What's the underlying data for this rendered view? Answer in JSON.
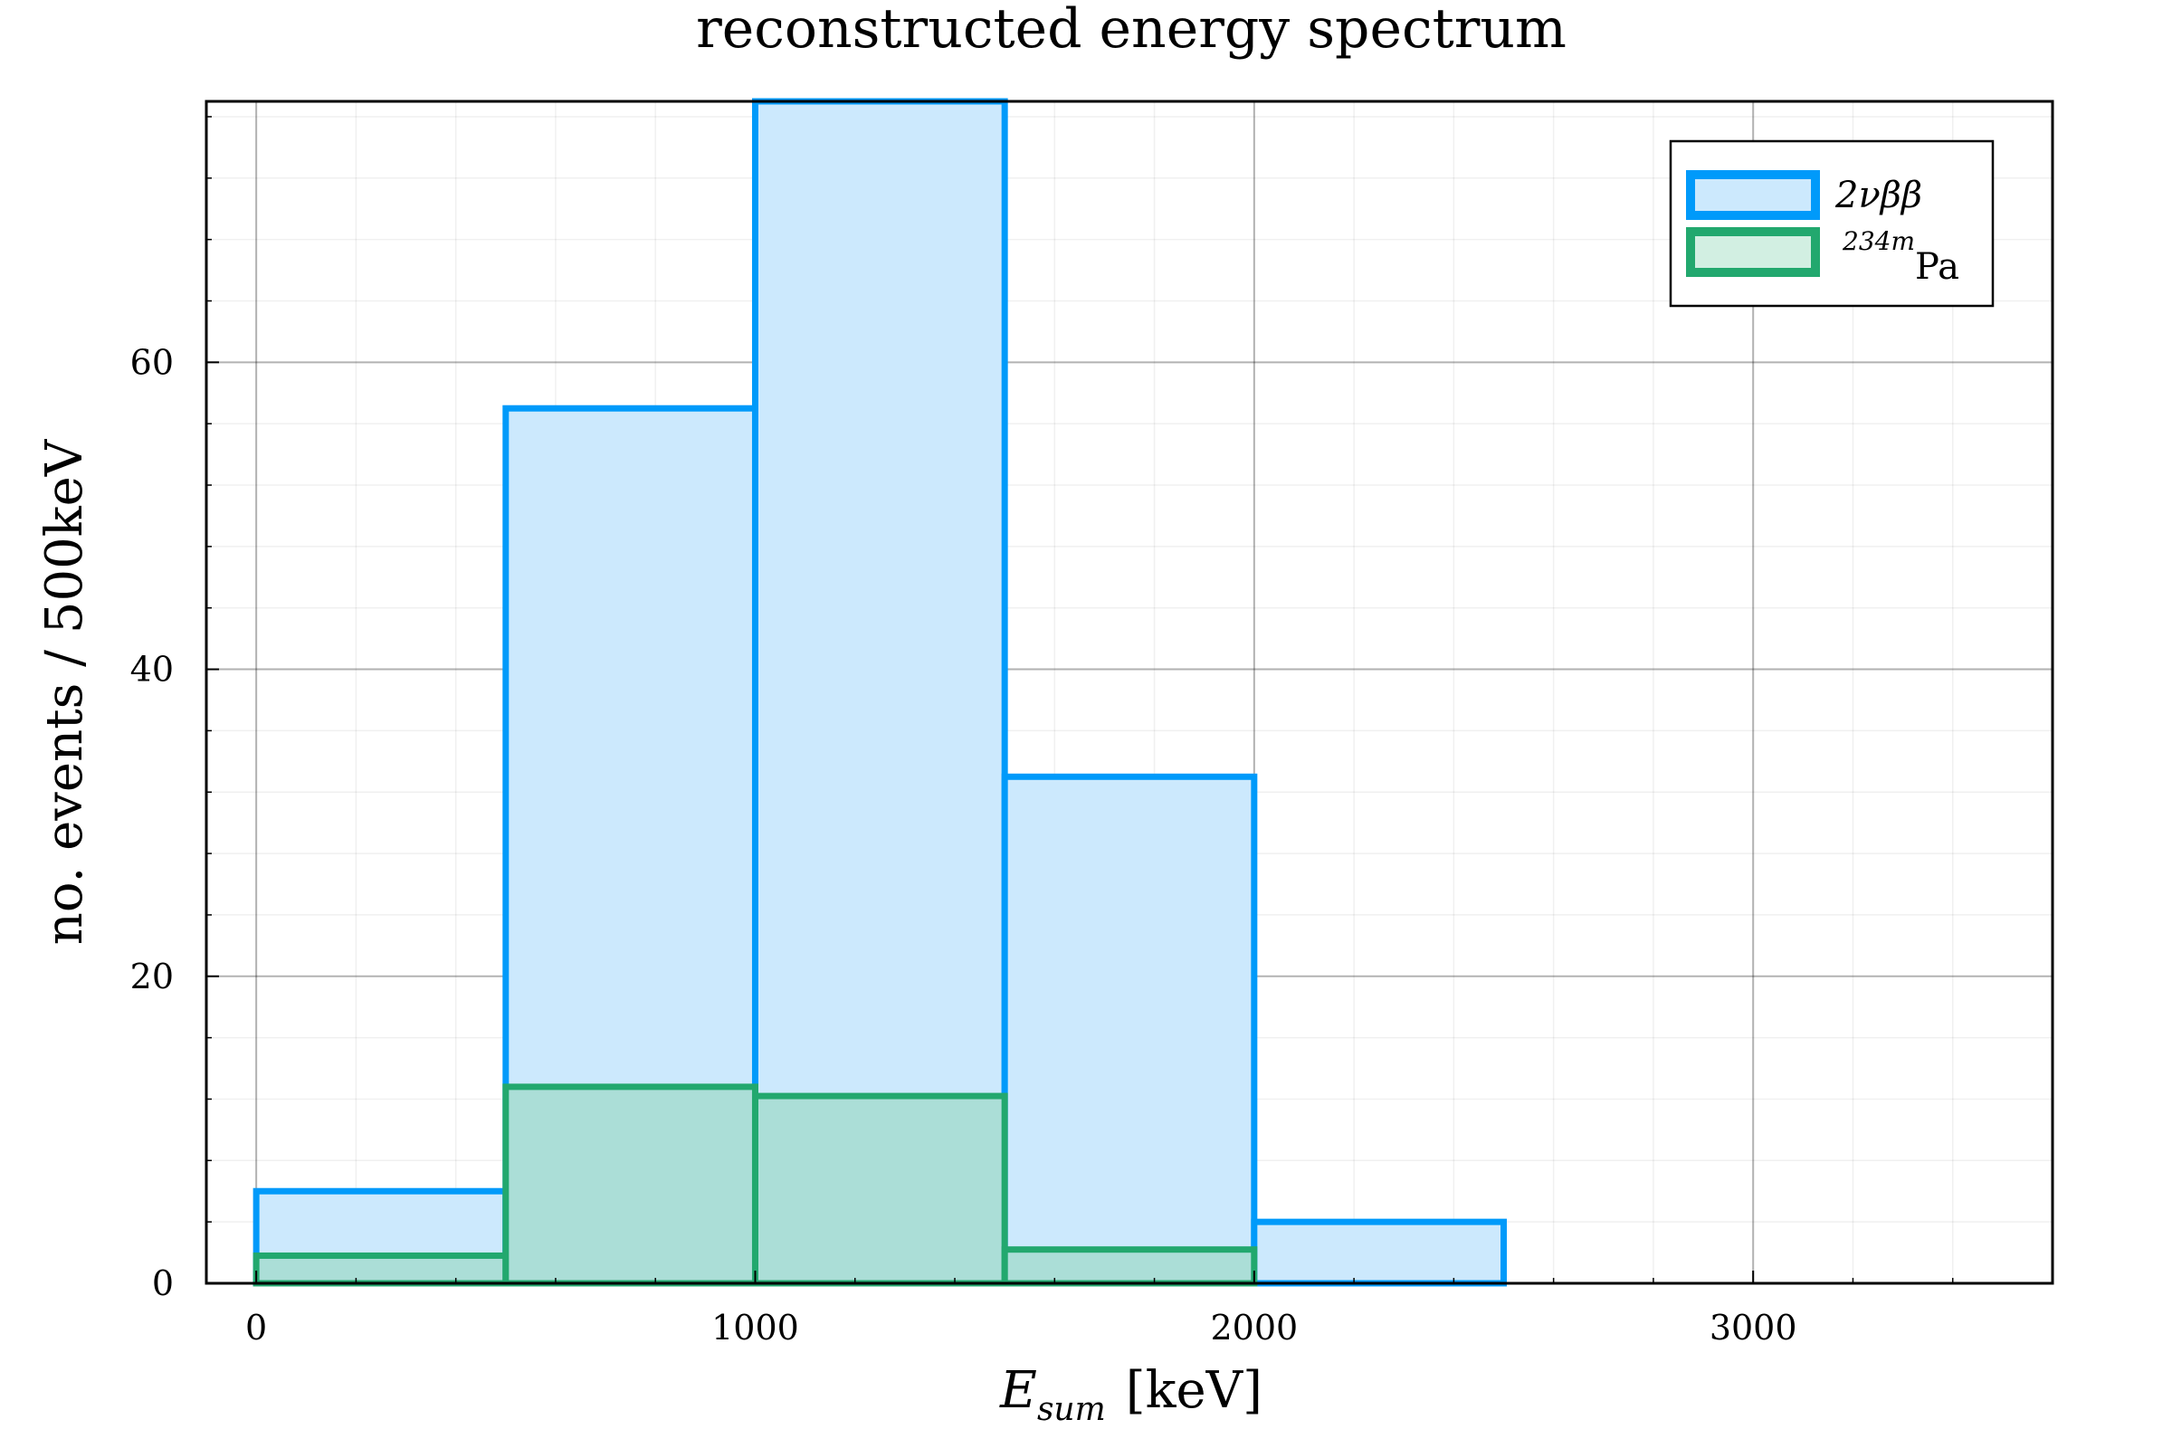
{
  "chart_data": {
    "type": "histogram",
    "title": "reconstructed energy spectrum",
    "xlabel_main": "E",
    "xlabel_sub": "sum",
    "xlabel_unit": "[keV]",
    "ylabel": "no. events / 500keV",
    "xlim": [
      -100,
      3600
    ],
    "ylim": [
      0,
      77
    ],
    "x_ticks": [
      0,
      1000,
      2000,
      3000
    ],
    "x_tick_labels": [
      "0",
      "1000",
      "2000",
      "3000"
    ],
    "y_ticks": [
      0,
      20,
      40,
      60
    ],
    "y_tick_labels": [
      "0",
      "20",
      "40",
      "60"
    ],
    "grid": true,
    "minor_grid": true,
    "legend_position": "top-right",
    "bin_edges": [
      0,
      500,
      1000,
      1500,
      2000,
      2500,
      3000,
      3500
    ],
    "series": [
      {
        "name_main": "2νββ",
        "values": [
          6,
          57,
          77,
          33,
          4,
          0,
          0
        ],
        "line_color": "#009AFA",
        "fill_color": "#CCE9FD"
      },
      {
        "name_sup": "234m",
        "name_main": "Pa",
        "values": [
          1.8,
          12.8,
          12.2,
          2.2,
          0,
          0,
          0
        ],
        "line_color": "#22A86E",
        "fill_color": "#A5DCD0"
      }
    ]
  }
}
